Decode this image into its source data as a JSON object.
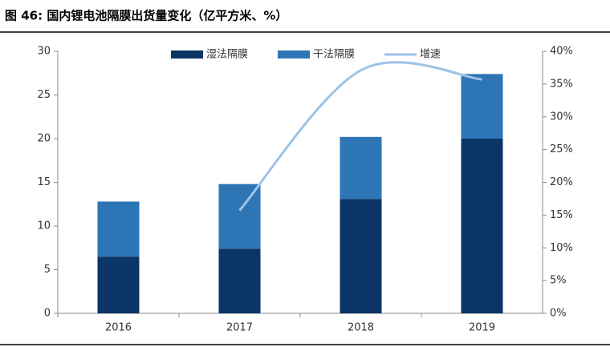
{
  "chart_data": {
    "type": "bar",
    "stacked": true,
    "title": "图 46: 国内锂电池隔膜出货量变化（亿平方米、%）",
    "categories": [
      "2016",
      "2017",
      "2018",
      "2019"
    ],
    "series": [
      {
        "name": "湿法隔膜",
        "color": "#0a3566",
        "values": [
          6.5,
          7.4,
          13.1,
          20.0
        ]
      },
      {
        "name": "干法隔膜",
        "color": "#2e75b6",
        "values": [
          6.3,
          7.4,
          7.1,
          7.4
        ]
      },
      {
        "name": "增速",
        "color": "#9dc3e6",
        "type": "line",
        "axis": "y2",
        "values": [
          null,
          15.7,
          37.1,
          35.7
        ]
      }
    ],
    "ylim": [
      0,
      30
    ],
    "yticks": [
      0,
      5,
      10,
      15,
      20,
      25,
      30
    ],
    "y2lim": [
      0,
      40
    ],
    "y2ticks": [
      {
        "value": 0,
        "label": "0%"
      },
      {
        "value": 5,
        "label": "5%"
      },
      {
        "value": 10,
        "label": "10%"
      },
      {
        "value": 15,
        "label": "15%"
      },
      {
        "value": 20,
        "label": "20%"
      },
      {
        "value": 25,
        "label": "25%"
      },
      {
        "value": 30,
        "label": "30%"
      },
      {
        "value": 35,
        "label": "35%"
      },
      {
        "value": 40,
        "label": "40%"
      }
    ],
    "legend": "top",
    "grid": false
  }
}
